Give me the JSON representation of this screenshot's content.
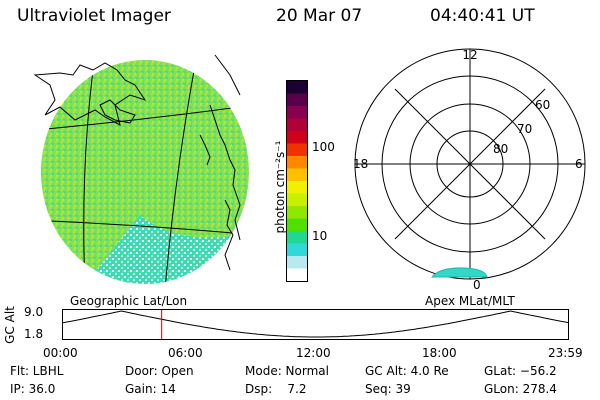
{
  "header": {
    "instrument": "Ultraviolet Imager",
    "date": "20 Mar 07",
    "time": "04:40:41 UT"
  },
  "geo_panel": {
    "label": "Geographic Lat/Lon"
  },
  "apex_panel": {
    "label": "Apex MLat/MLT",
    "mlt_labels": [
      "12",
      "18",
      "6",
      "0"
    ],
    "mlat_labels": [
      "60",
      "70",
      "80"
    ]
  },
  "colorbar": {
    "unit_label": "photon cm⁻²s⁻¹",
    "ticks": [
      "100",
      "10"
    ],
    "colors": [
      "#1a0033",
      "#5a004a",
      "#8a0050",
      "#b0003a",
      "#d0001a",
      "#ee3300",
      "#ff8800",
      "#ffc000",
      "#f0f000",
      "#c8f000",
      "#90e800",
      "#50e000",
      "#20d890",
      "#30d8d8",
      "#b8e8f0",
      "#ffffff"
    ]
  },
  "altitude_plot": {
    "ylabel": "GC Alt",
    "yticks": [
      "9.0",
      "1.8"
    ],
    "xticks": [
      "00:00",
      "06:00",
      "12:00",
      "18:00",
      "23:59"
    ],
    "marker_time_hours": 4.68
  },
  "info": {
    "row1": [
      "Flt: LBHL",
      "Door: Open",
      "Mode: Normal",
      "GC Alt: 4.0 Re",
      "GLat: −56.2"
    ],
    "row2": [
      "IP: 36.0",
      "Gain: 14",
      "Dsp:    7.2",
      "Seq: 39",
      "GLon: 278.4"
    ]
  }
}
